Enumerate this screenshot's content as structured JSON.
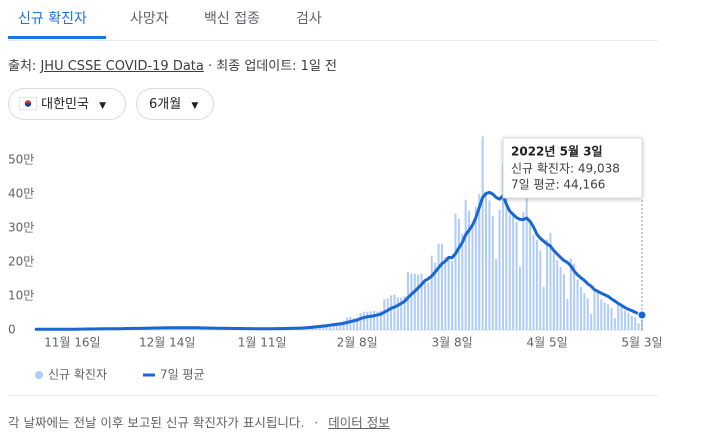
{
  "tabs": [
    "신규 확진자",
    "사망자",
    "백신 접종",
    "검사"
  ],
  "source": {
    "prefix": "출처:",
    "link": "JHU CSSE COVID-19 Data",
    "updated": "· 최종 업데이트: 1일 전"
  },
  "filters": [
    "대한민국",
    "6개월"
  ],
  "chart_data": {
    "type": "bar",
    "categories": [
      null,
      null,
      null,
      null,
      null,
      null,
      null,
      null,
      null,
      null,
      null,
      "11월 16일",
      null,
      null,
      null,
      null,
      null,
      null,
      null,
      null,
      null,
      null,
      null,
      null,
      null,
      null,
      null,
      null,
      null,
      null,
      null,
      null,
      null,
      null,
      null,
      null,
      null,
      null,
      null,
      "12월 14일",
      null,
      null,
      null,
      null,
      null,
      null,
      null,
      null,
      null,
      null,
      null,
      null,
      null,
      null,
      null,
      null,
      null,
      null,
      null,
      null,
      null,
      null,
      null,
      null,
      null,
      null,
      null,
      "1월 11일",
      null,
      null,
      null,
      null,
      null,
      null,
      null,
      null,
      null,
      null,
      null,
      null,
      null,
      null,
      null,
      null,
      null,
      null,
      null,
      null,
      null,
      null,
      null,
      null,
      null,
      null,
      null,
      "2월 8일",
      null,
      null,
      null,
      null,
      null,
      null,
      null,
      null,
      null,
      null,
      null,
      null,
      null,
      null,
      null,
      null,
      null,
      null,
      null,
      null,
      null,
      null,
      null,
      null,
      null,
      null,
      null,
      "3월 8일",
      null,
      null,
      null,
      null,
      null,
      null,
      null,
      null,
      null,
      null,
      null,
      null,
      null,
      null,
      null,
      null,
      null,
      null,
      null,
      null,
      null,
      null,
      null,
      null,
      null,
      null,
      null,
      "4월 5일",
      null,
      null,
      null,
      null,
      null,
      null,
      null,
      null,
      null,
      null,
      null,
      null,
      null,
      null,
      null,
      null,
      null,
      null,
      null,
      null,
      null,
      null,
      null,
      null,
      null,
      null,
      null,
      "5월 3일"
    ],
    "series": [
      {
        "name": "신규 확진자",
        "type": "bar",
        "color": "#aecbfa",
        "values": [
          2300,
          2200,
          1800,
          1700,
          2400,
          2500,
          2400,
          2400,
          2400,
          2000,
          2100,
          3200,
          3300,
          3000,
          3200,
          3100,
          2800,
          2700,
          4100,
          4100,
          3900,
          4100,
          3900,
          3300,
          3000,
          5100,
          5200,
          5200,
          5300,
          5100,
          4300,
          4300,
          7100,
          7000,
          7100,
          6900,
          7000,
          5800,
          5500,
          7800,
          7600,
          7400,
          7300,
          6200,
          5300,
          5300,
          7400,
          7400,
          6900,
          6200,
          5800,
          5400,
          4200,
          5200,
          5400,
          4800,
          4400,
          4400,
          3800,
          3100,
          4200,
          4400,
          4100,
          3700,
          3500,
          3300,
          3000,
          4400,
          4300,
          4500,
          4500,
          4400,
          4200,
          3900,
          5800,
          5800,
          6600,
          6800,
          7000,
          7600,
          8500,
          13000,
          14500,
          14500,
          16100,
          17500,
          17000,
          18000,
          20000,
          20300,
          22900,
          27400,
          36300,
          38700,
          35300,
          36700,
          49500,
          54100,
          53900,
          54900,
          56400,
          54600,
          57100,
          90400,
          93000,
          102000,
          104800,
          95300,
          95600,
          99500,
          170000,
          166000,
          165800,
          163500,
          166000,
          139600,
          138900,
          219000,
          198800,
          254300,
          254300,
          215000,
          210700,
          202700,
          342400,
          327500,
          282900,
          383600,
          350100,
          309700,
          362300,
          400700,
          570000,
          407000,
          381400,
          334700,
          209100,
          353900,
          490800,
          395500,
          339500,
          335500,
          318000,
          187200,
          347500,
          424600,
          320700,
          280200,
          264100,
          234300,
          127000,
          266100,
          286200,
          224800,
          205300,
          185500,
          164400,
          90900,
          210700,
          195400,
          148400,
          125800,
          107900,
          93000,
          47700,
          118500,
          111300,
          90800,
          81000,
          75400,
          64700,
          34300,
          76700,
          75400,
          57500,
          50500,
          42000,
          37700,
          20100,
          49038
        ]
      },
      {
        "name": "7일 평균",
        "type": "line",
        "color": "#1967d2",
        "values": [
          2300,
          2300,
          2200,
          2200,
          2200,
          2200,
          2200,
          2200,
          2300,
          2300,
          2300,
          2400,
          2500,
          2600,
          2700,
          2800,
          2900,
          2900,
          3100,
          3300,
          3400,
          3500,
          3600,
          3600,
          3700,
          3900,
          4100,
          4300,
          4500,
          4600,
          4600,
          4700,
          5100,
          5400,
          5600,
          5900,
          6000,
          6200,
          6300,
          6400,
          6500,
          6600,
          6700,
          6600,
          6600,
          6500,
          6500,
          6500,
          6400,
          6200,
          6000,
          5900,
          5700,
          5600,
          5300,
          5100,
          4900,
          4700,
          4600,
          4400,
          4300,
          4300,
          4200,
          4100,
          4000,
          3900,
          3700,
          3700,
          3700,
          3800,
          3900,
          4000,
          4100,
          4200,
          4400,
          4600,
          4900,
          5200,
          5500,
          6000,
          6400,
          7300,
          8300,
          9300,
          10400,
          11600,
          12700,
          14100,
          15600,
          16700,
          18000,
          19600,
          22200,
          24600,
          27200,
          29500,
          33500,
          36500,
          39000,
          40100,
          42100,
          44400,
          47200,
          52400,
          58100,
          64000,
          67400,
          72500,
          78300,
          84400,
          95500,
          105100,
          113800,
          124100,
          134200,
          145500,
          151000,
          159000,
          170400,
          183100,
          195100,
          202400,
          213700,
          213100,
          225000,
          241700,
          257600,
          280600,
          294000,
          308500,
          330000,
          360000,
          390000,
          402000,
          405000,
          400000,
          390000,
          385000,
          395000,
          370000,
          350000,
          340000,
          331200,
          325600,
          325300,
          329700,
          319800,
          303200,
          281900,
          270000,
          261300,
          253100,
          247200,
          233800,
          223400,
          213800,
          204200,
          199100,
          188900,
          173300,
          162200,
          153700,
          145900,
          136100,
          129000,
          118600,
          113600,
          108400,
          104000,
          99000,
          92000,
          85000,
          78000,
          72000,
          66000,
          61000,
          57000,
          52000,
          48000,
          44166
        ]
      }
    ],
    "ylim": [
      0,
      580000
    ],
    "yticks": [
      0,
      {
        "value": 100000,
        "label": "10만"
      },
      {
        "value": 200000,
        "label": "20만"
      },
      {
        "value": 300000,
        "label": "30만"
      },
      {
        "value": 400000,
        "label": "40만"
      },
      {
        "value": 500000,
        "label": "50만"
      }
    ],
    "tooltip": {
      "title": "2022년 5월 3일",
      "lines": [
        "신규 확진자: 49,038",
        "7일 평균: 44,166"
      ]
    }
  },
  "footer": {
    "note": "각 날짜에는 전날 이후 보고된 신규 확진자가 표시됩니다.",
    "sep": "·",
    "link": "데이터 정보"
  }
}
